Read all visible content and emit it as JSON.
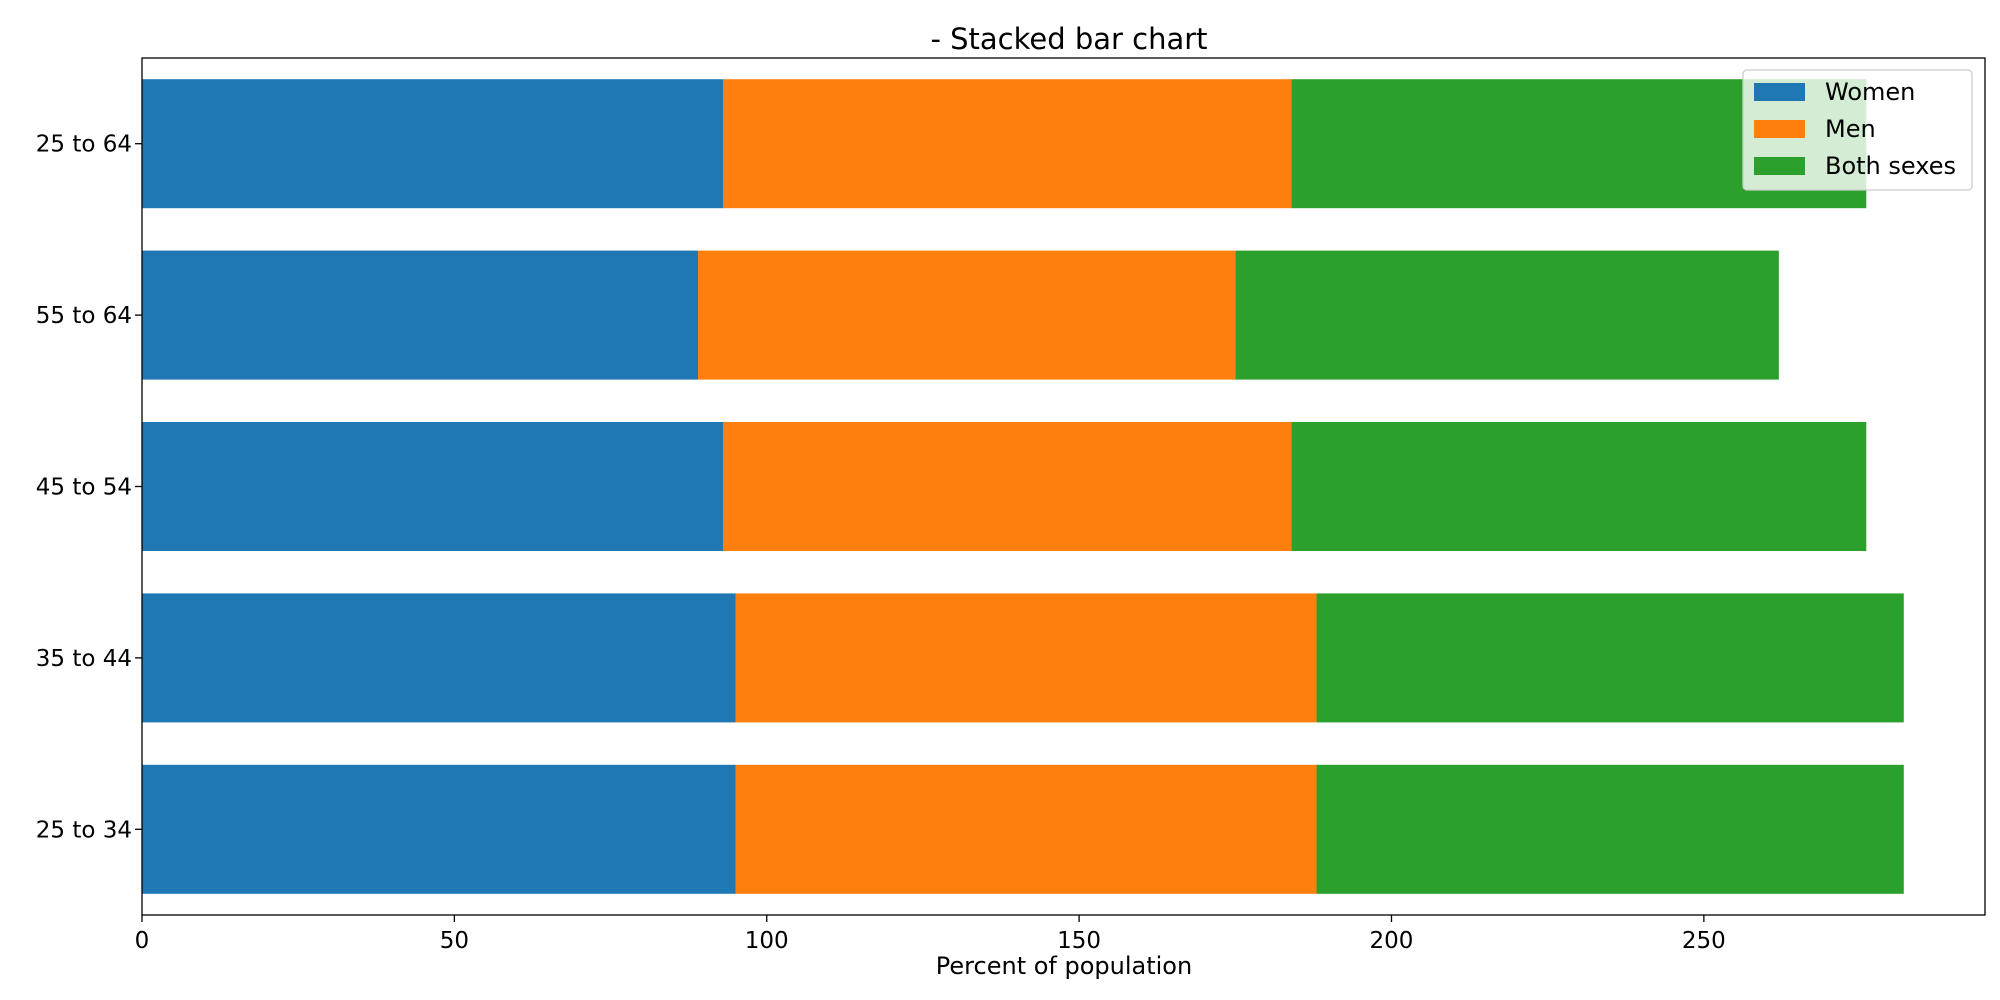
{
  "chart_data": {
    "type": "bar",
    "orientation": "horizontal",
    "stacked": true,
    "title": "- Stacked bar chart",
    "xlabel": "Percent of population",
    "ylabel": "",
    "xlim": [
      0,
      295
    ],
    "xticks": [
      0,
      50,
      100,
      150,
      200,
      250
    ],
    "categories": [
      "25 to 34",
      "35 to 44",
      "45 to 54",
      "55 to 64",
      "25 to 64"
    ],
    "series": [
      {
        "name": "Women",
        "color": "#1f77b4",
        "values": [
          95,
          95,
          93,
          89,
          93
        ]
      },
      {
        "name": "Men",
        "color": "#ff7f0e",
        "values": [
          93,
          93,
          91,
          86,
          91
        ]
      },
      {
        "name": "Both sexes",
        "color": "#2ca02c",
        "values": [
          94,
          94,
          92,
          87,
          92
        ]
      }
    ],
    "grid": false,
    "legend": "top-right"
  }
}
